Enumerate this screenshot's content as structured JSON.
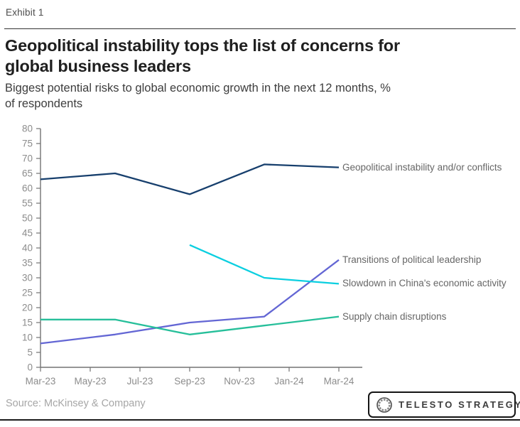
{
  "header": {
    "exhibit_label": "Exhibit 1",
    "title_lines": [
      "Geopolitical instability tops the list of concerns for",
      "global business leaders"
    ],
    "title": "Geopolitical instability tops the list of concerns for global business leaders",
    "subtitle_lines": [
      "Biggest potential risks to global economic growth in the next 12 months, %",
      "of respondents"
    ],
    "subtitle": "Biggest potential risks to global economic growth in the next 12 months, % of respondents"
  },
  "chart_data": {
    "type": "line",
    "title": "Biggest potential risks to global economic growth in the next 12 months, % of respondents",
    "xlabel": "",
    "ylabel": "% of respondents",
    "ylim": [
      0,
      80
    ],
    "y_tick_step": 5,
    "x_tick_labels": [
      "Mar-23",
      "May-23",
      "Jul-23",
      "Sep-23",
      "Nov-23",
      "Jan-24",
      "Mar-24"
    ],
    "x_tick_positions": [
      0,
      2,
      4,
      6,
      8,
      10,
      12
    ],
    "x_range": [
      0,
      12
    ],
    "survey_dates": [
      "Mar-23",
      "Jun-23",
      "Sep-23",
      "Dec-23",
      "Mar-24"
    ],
    "x": [
      0,
      3,
      6,
      9,
      12
    ],
    "grid": false,
    "legend_position": "labels-at-line-ends",
    "series": [
      {
        "name": "Geopolitical instability and/or conflicts",
        "color": "#173f6d",
        "values": [
          63,
          65,
          58,
          68,
          67
        ]
      },
      {
        "name": "Transitions of political leadership",
        "color": "#6366d4",
        "values": [
          8,
          11,
          15,
          17,
          36
        ]
      },
      {
        "name": "Slowdown in China's economic activity",
        "color": "#0bcfe0",
        "values": [
          null,
          null,
          41,
          30,
          28
        ]
      },
      {
        "name": "Supply chain disruptions",
        "color": "#26bf9a",
        "values": [
          16,
          16,
          11,
          14,
          17
        ]
      }
    ],
    "axis_color": "#737373",
    "tick_label_color": "#8c8c8c"
  },
  "footer": {
    "source": "Source: McKinsey & Company",
    "logo_text": "TELESTO STRATEGY"
  }
}
